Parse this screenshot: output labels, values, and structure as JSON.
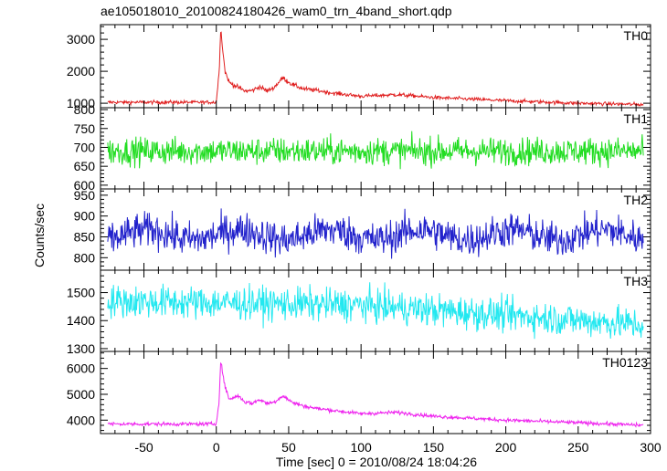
{
  "chart_data": {
    "type": "line",
    "title": "ae105018010_20100824180426_wam0_trn_4band_short.qdp",
    "xlabel": "Time [sec] 0 = 2010/08/24 18:04:26",
    "ylabel": "Counts/sec",
    "xlim": [
      -80,
      300
    ],
    "xticks": [
      -50,
      0,
      50,
      100,
      150,
      200,
      250,
      300
    ],
    "panels": [
      {
        "name": "TH0",
        "color": "#e02020",
        "ylim": [
          860,
          3460
        ],
        "yticks": [
          1000,
          2000,
          3000
        ],
        "baseline": 1030,
        "noise": 40,
        "wiggle": 0,
        "wiggleAmp": 0,
        "burst": [
          {
            "t0": 0,
            "t1": 2,
            "base": 1050,
            "peak": 2000
          },
          {
            "t": 3,
            "v": 3350
          },
          {
            "t": 6,
            "v": 2000
          },
          {
            "t": 9,
            "v": 1650
          },
          {
            "t": 15,
            "v": 1500
          },
          {
            "t": 20,
            "v": 1380
          },
          {
            "t": 25,
            "v": 1400
          },
          {
            "t": 30,
            "v": 1520
          },
          {
            "t": 35,
            "v": 1380
          },
          {
            "t": 40,
            "v": 1500
          },
          {
            "t": 46,
            "v": 1800
          },
          {
            "t": 52,
            "v": 1600
          },
          {
            "t": 60,
            "v": 1450
          },
          {
            "t": 70,
            "v": 1400
          },
          {
            "t": 80,
            "v": 1320
          },
          {
            "t": 100,
            "v": 1220
          },
          {
            "t": 125,
            "v": 1270
          },
          {
            "t": 150,
            "v": 1180
          },
          {
            "t": 200,
            "v": 1080
          },
          {
            "t": 250,
            "v": 1000
          },
          {
            "t": 295,
            "v": 960
          }
        ]
      },
      {
        "name": "TH1",
        "color": "#22dd22",
        "ylim": [
          590,
          805
        ],
        "yticks": [
          600,
          650,
          700,
          750,
          800
        ],
        "baseline": 690,
        "noise": 26,
        "wiggle": 0,
        "wiggleAmp": 0,
        "burst": []
      },
      {
        "name": "TH2",
        "color": "#2222cc",
        "ylim": [
          770,
          965
        ],
        "yticks": [
          800,
          850,
          900,
          950
        ],
        "baseline": 855,
        "noise": 30,
        "wiggle": 10,
        "wiggleAmp": 12,
        "burst": []
      },
      {
        "name": "TH3",
        "color": "#22e8f0",
        "ylim": [
          1290,
          1580
        ],
        "yticks": [
          1300,
          1400,
          1500
        ],
        "baseline": 1470,
        "noise": 42,
        "wiggle": 0,
        "wiggleAmp": 0,
        "trend": [
          [
            -75,
            1470
          ],
          [
            100,
            1455
          ],
          [
            200,
            1420
          ],
          [
            295,
            1385
          ]
        ],
        "burst": []
      },
      {
        "name": "TH0123",
        "color": "#ee22ee",
        "ylim": [
          3480,
          6660
        ],
        "yticks": [
          4000,
          5000,
          6000
        ],
        "baseline": 3850,
        "noise": 50,
        "wiggle": 0,
        "wiggleAmp": 0,
        "burst": [
          {
            "t0": 0,
            "t1": 2,
            "base": 3880,
            "peak": 4800
          },
          {
            "t": 3,
            "v": 6300
          },
          {
            "t": 6,
            "v": 5300
          },
          {
            "t": 9,
            "v": 4800
          },
          {
            "t": 15,
            "v": 4950
          },
          {
            "t": 20,
            "v": 4700
          },
          {
            "t": 25,
            "v": 4650
          },
          {
            "t": 30,
            "v": 4800
          },
          {
            "t": 35,
            "v": 4650
          },
          {
            "t": 40,
            "v": 4700
          },
          {
            "t": 46,
            "v": 4950
          },
          {
            "t": 52,
            "v": 4700
          },
          {
            "t": 60,
            "v": 4550
          },
          {
            "t": 70,
            "v": 4450
          },
          {
            "t": 80,
            "v": 4380
          },
          {
            "t": 100,
            "v": 4250
          },
          {
            "t": 125,
            "v": 4300
          },
          {
            "t": 150,
            "v": 4150
          },
          {
            "t": 200,
            "v": 4000
          },
          {
            "t": 250,
            "v": 3900
          },
          {
            "t": 295,
            "v": 3800
          }
        ]
      }
    ]
  }
}
